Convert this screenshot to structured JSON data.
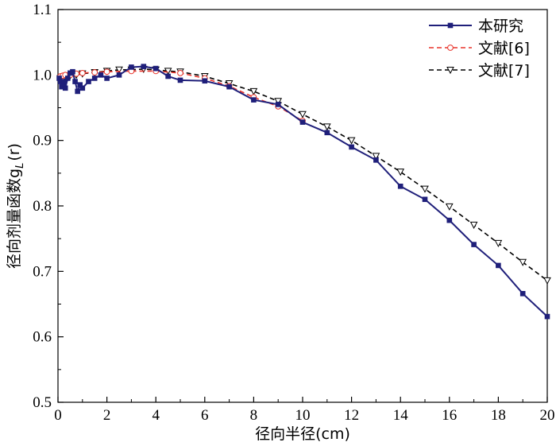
{
  "chart_data": {
    "type": "line",
    "xlabel": "径向半径(cm)",
    "ylabel": "径向剂量函数g",
    "ylabel_sub": "L",
    "ylabel_suffix": "(r)",
    "xlim": [
      0,
      20
    ],
    "ylim": [
      0.5,
      1.1
    ],
    "x_ticks": [
      0,
      2,
      4,
      6,
      8,
      10,
      12,
      14,
      16,
      18,
      20
    ],
    "x_tick_labels": [
      "0",
      "2",
      "4",
      "6",
      "8",
      "10",
      "12",
      "14",
      "16",
      "18",
      "20"
    ],
    "y_ticks": [
      0.5,
      0.6,
      0.7,
      0.8,
      0.9,
      1.0,
      1.1
    ],
    "y_tick_labels": [
      "0.5",
      "0.6",
      "0.7",
      "0.8",
      "0.9",
      "1.0",
      "1.1"
    ],
    "grid": false,
    "legend_position": "top-right",
    "series": [
      {
        "name": "本研究",
        "color": "#1f1f7a",
        "line_style": "solid",
        "marker": "filled-square",
        "x": [
          0.05,
          0.1,
          0.15,
          0.2,
          0.25,
          0.3,
          0.4,
          0.5,
          0.6,
          0.7,
          0.8,
          0.9,
          1.0,
          1.25,
          1.5,
          1.75,
          2.0,
          2.5,
          3.0,
          3.5,
          4.0,
          4.5,
          5.0,
          6.0,
          7.0,
          8.0,
          9.0,
          10.0,
          11.0,
          12.0,
          13.0,
          14.0,
          15.0,
          16.0,
          17.0,
          18.0,
          19.0,
          20.0
        ],
        "y": [
          0.995,
          0.99,
          0.982,
          0.985,
          0.99,
          0.98,
          0.995,
          1.003,
          1.005,
          0.99,
          0.975,
          0.985,
          0.98,
          0.99,
          0.995,
          1.0,
          0.995,
          1.0,
          1.012,
          1.013,
          1.01,
          0.998,
          0.992,
          0.991,
          0.982,
          0.962,
          0.955,
          0.928,
          0.912,
          0.89,
          0.87,
          0.83,
          0.81,
          0.778,
          0.741,
          0.709,
          0.666,
          0.631
        ]
      },
      {
        "name": "文献[6]",
        "color": "#e8332a",
        "line_style": "dashed",
        "marker": "open-circle",
        "x": [
          0.1,
          0.2,
          0.3,
          0.5,
          0.75,
          1.0,
          1.5,
          2.0,
          3.0,
          4.0,
          5.0,
          6.0,
          7.0,
          8.0,
          9.0,
          10.0
        ],
        "y": [
          0.998,
          0.999,
          1.0,
          1.0,
          1.002,
          1.003,
          1.004,
          1.005,
          1.006,
          1.006,
          1.003,
          0.995,
          0.983,
          0.966,
          0.952,
          0.93
        ]
      },
      {
        "name": "文献[7]",
        "color": "#000000",
        "line_style": "dashed",
        "marker": "open-triangle-down",
        "x": [
          0.1,
          0.2,
          0.3,
          0.5,
          0.75,
          1.0,
          1.5,
          2.0,
          2.5,
          3.0,
          3.5,
          4.0,
          4.5,
          5.0,
          6.0,
          7.0,
          8.0,
          9.0,
          10.0,
          11.0,
          12.0,
          13.0,
          14.0,
          15.0,
          16.0,
          17.0,
          18.0,
          19.0,
          20.0
        ],
        "y": [
          0.995,
          0.995,
          0.997,
          0.999,
          1.0,
          1.002,
          1.004,
          1.006,
          1.008,
          1.008,
          1.009,
          1.008,
          1.006,
          1.005,
          0.998,
          0.987,
          0.975,
          0.96,
          0.94,
          0.921,
          0.9,
          0.876,
          0.852,
          0.826,
          0.799,
          0.771,
          0.743,
          0.714,
          0.686
        ]
      }
    ]
  }
}
